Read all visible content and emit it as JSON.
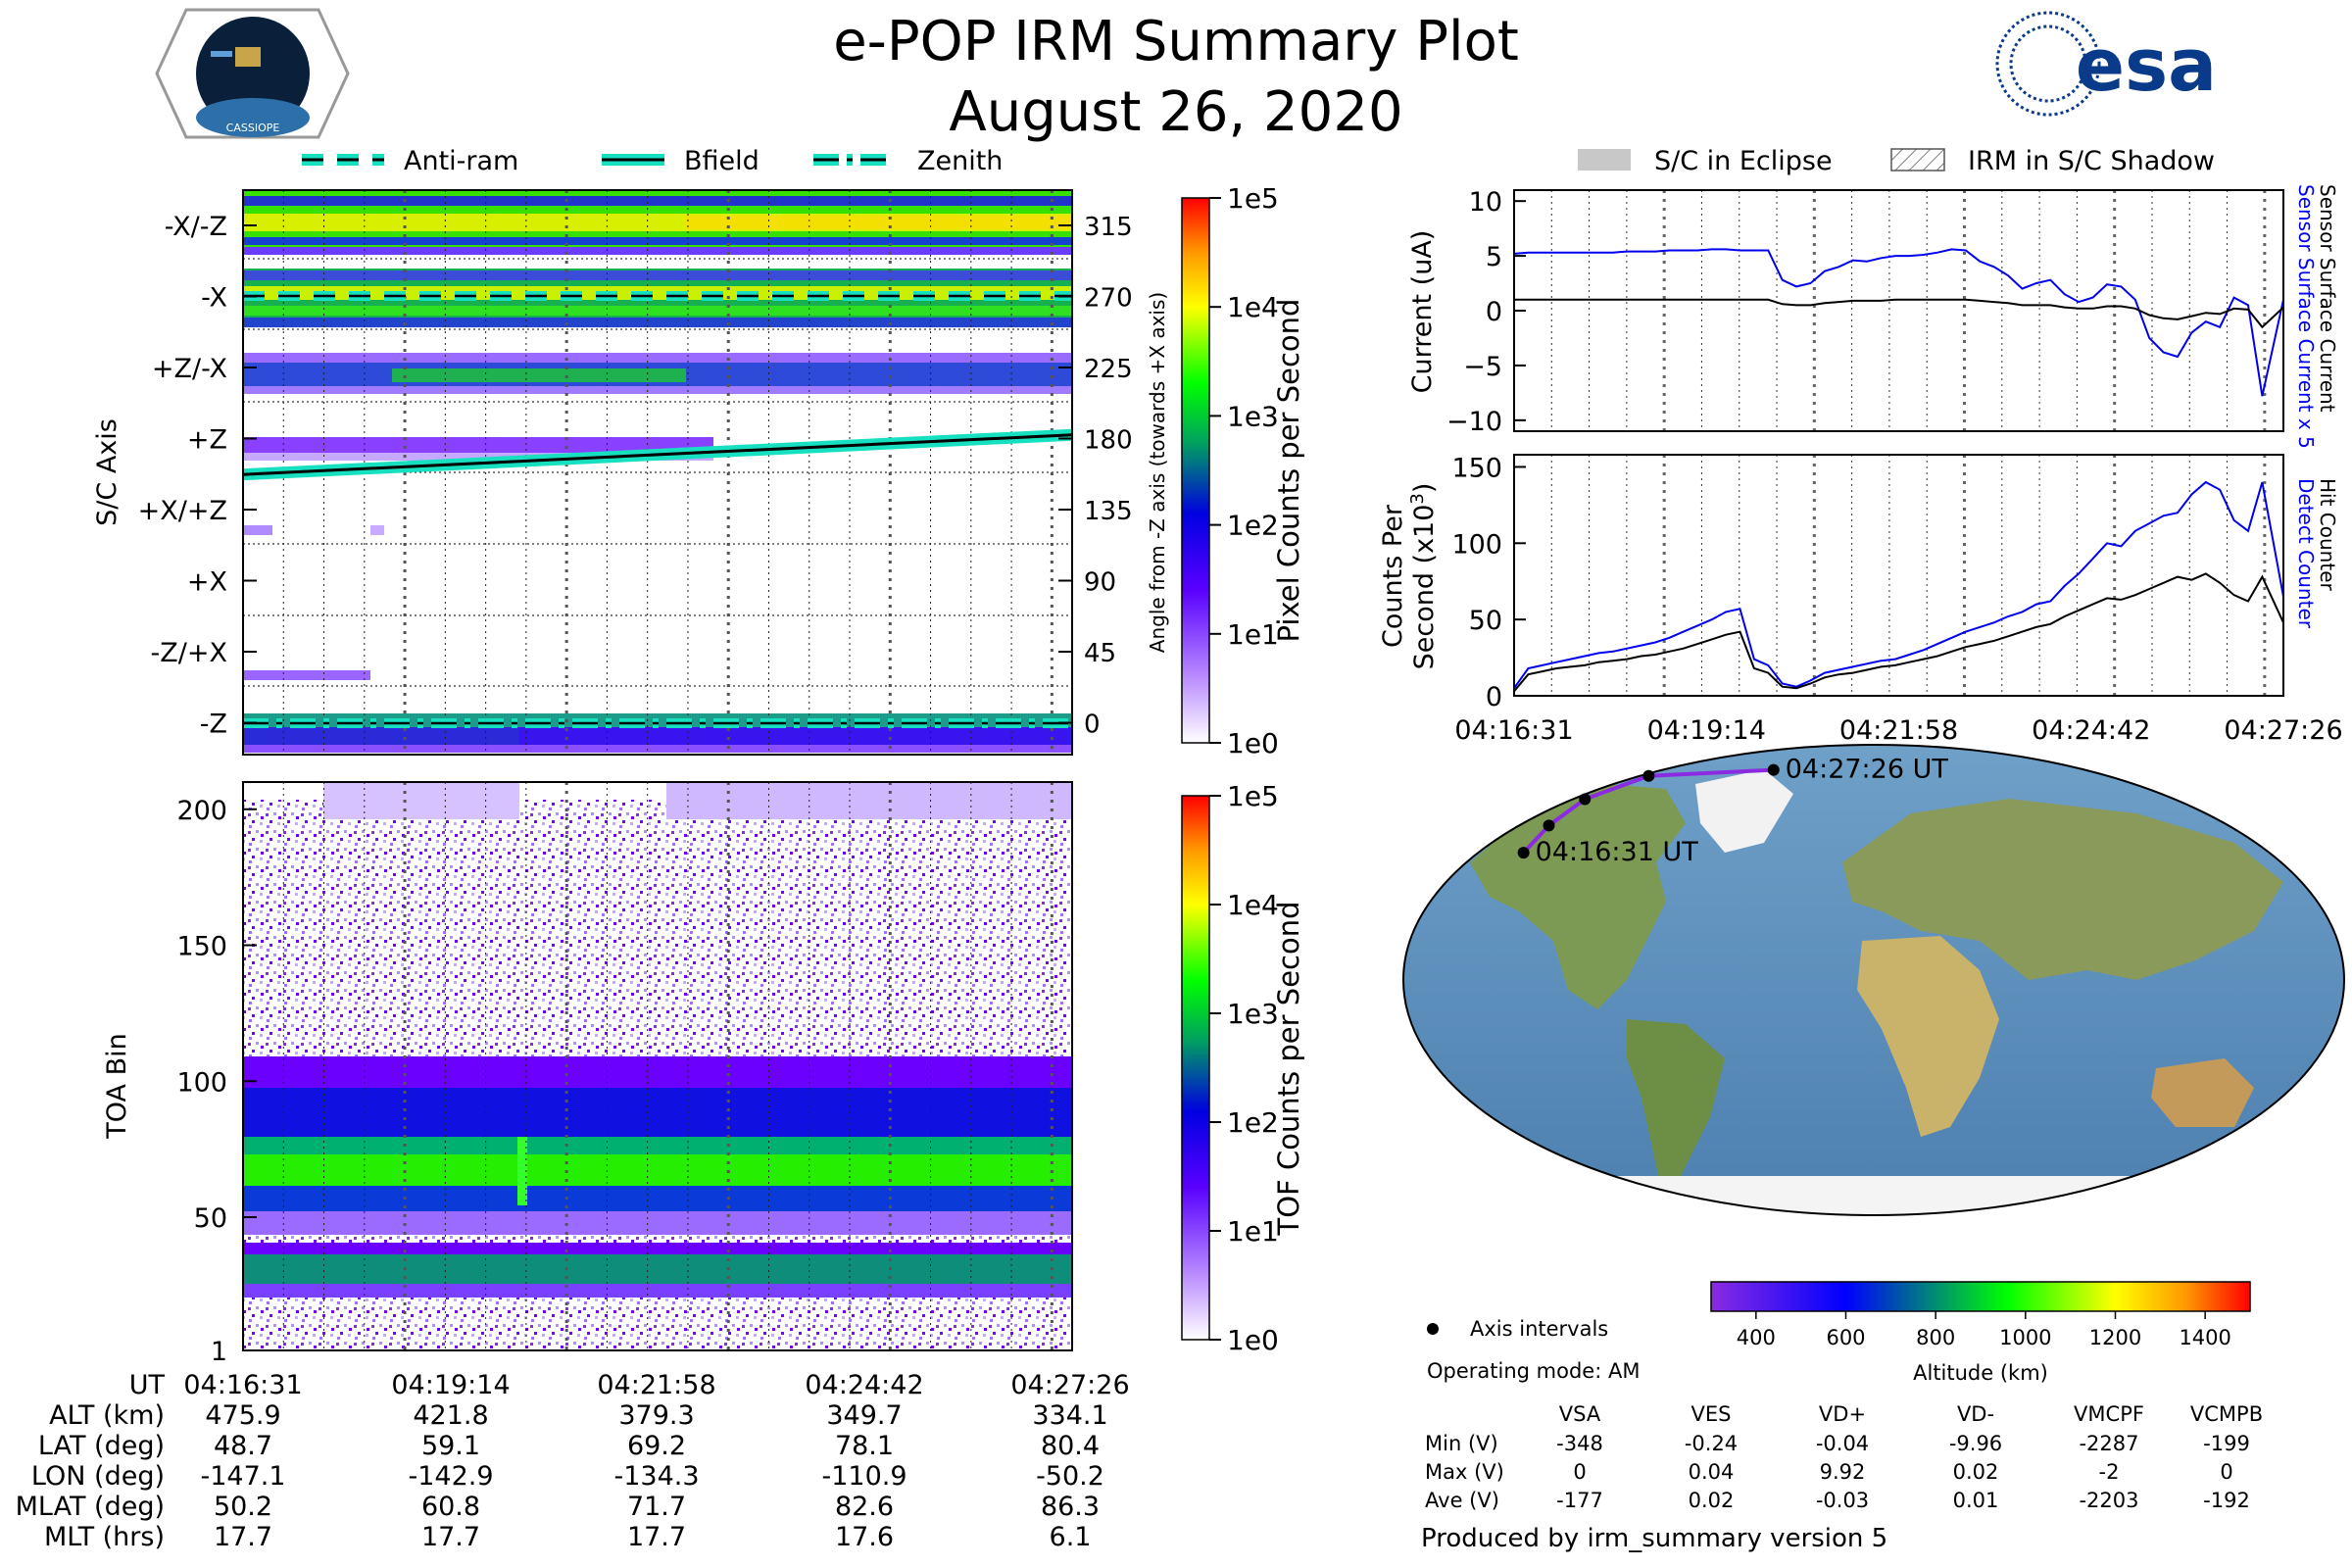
{
  "header": {
    "title": "e-POP IRM Summary Plot",
    "date": "August 26, 2020"
  },
  "logos": {
    "cassiope_text": "CASSIOPE",
    "esa_text": "esa"
  },
  "legend_top_left": [
    {
      "label": "Anti-ram",
      "style": "dashed"
    },
    {
      "label": "Bfield",
      "style": "solid"
    },
    {
      "label": "Zenith",
      "style": "dashdot"
    }
  ],
  "legend_top_right": [
    {
      "label": "S/C in Eclipse",
      "style": "gray"
    },
    {
      "label": "IRM in S/C Shadow",
      "style": "hatch"
    }
  ],
  "colors": {
    "accent": "#17e0c0",
    "blue_line": "#0000ee",
    "black_line": "#000000"
  },
  "chart_data": [
    {
      "id": "pixel",
      "type": "heatmap",
      "ylabel": "S/C Axis",
      "yticks_left": [
        "-X/-Z",
        "-X",
        "+Z/-X",
        "+Z",
        "+X/+Z",
        "+X",
        "-Z/+X",
        "-Z"
      ],
      "yticks_right": [
        "315",
        "270",
        "225",
        "180",
        "135",
        "90",
        "45",
        "0"
      ],
      "ylabel_right": "Angle from -Z axis (towards +X axis)",
      "colorbar_label": "Pixel Counts per Second",
      "colorbar_ticks": [
        "1e5",
        "1e4",
        "1e3",
        "1e2",
        "1e1",
        "1e0"
      ],
      "bfield_angle": [
        158,
        183
      ]
    },
    {
      "id": "tof",
      "type": "heatmap",
      "ylabel": "TOA Bin",
      "yticks": [
        "200",
        "150",
        "100",
        "50",
        "1"
      ],
      "ylim": [
        1,
        210
      ],
      "colorbar_label": "TOF Counts per Second",
      "colorbar_ticks": [
        "1e5",
        "1e4",
        "1e3",
        "1e2",
        "1e1",
        "1e0"
      ]
    },
    {
      "id": "current",
      "type": "line",
      "ylabel": "Current (uA)",
      "yticks": [
        "10",
        "5",
        "0",
        "−5",
        "−10"
      ],
      "ylim": [
        -11,
        11
      ],
      "right_label_blue": "Sensor Surface Current x 5",
      "right_label_black": "Sensor Surface Current",
      "x": [
        0,
        0.2,
        0.4,
        0.6,
        0.8,
        1.0,
        1.2,
        1.4,
        1.6,
        1.8,
        2.0,
        2.2,
        2.4,
        2.6,
        2.8,
        3.0,
        3.2,
        3.4,
        3.6,
        3.8,
        4.0,
        4.2,
        4.4,
        4.6,
        4.8,
        5.0,
        5.2,
        5.4,
        5.6,
        5.8,
        6.0,
        6.2,
        6.4,
        6.6,
        6.8,
        7.0,
        7.2,
        7.4,
        7.6,
        7.8,
        8.0,
        8.2,
        8.4,
        8.6,
        8.8,
        9.0,
        9.2,
        9.4,
        9.6,
        9.8,
        10.0,
        10.2,
        10.4,
        10.6,
        10.9
      ],
      "series": [
        {
          "name": "Sensor Surface Current x 5",
          "color": "#0000ee",
          "values": [
            5.2,
            5.3,
            5.3,
            5.3,
            5.3,
            5.3,
            5.3,
            5.3,
            5.4,
            5.4,
            5.4,
            5.5,
            5.5,
            5.5,
            5.6,
            5.6,
            5.5,
            5.5,
            5.5,
            2.8,
            2.2,
            2.5,
            3.6,
            4.0,
            4.6,
            4.5,
            4.8,
            5.0,
            5.0,
            5.1,
            5.3,
            5.6,
            5.5,
            4.5,
            4.0,
            3.2,
            2.0,
            2.5,
            2.8,
            1.5,
            0.8,
            1.2,
            2.4,
            2.2,
            1.0,
            -2.5,
            -3.8,
            -4.2,
            -2.0,
            -1.0,
            -1.5,
            1.2,
            0.5,
            -7.8,
            1.0
          ]
        },
        {
          "name": "Sensor Surface Current",
          "color": "#000000",
          "values": [
            1.0,
            1.0,
            1.0,
            1.0,
            1.0,
            1.0,
            1.0,
            1.0,
            1.0,
            1.0,
            1.0,
            1.0,
            1.0,
            1.0,
            1.0,
            1.0,
            1.0,
            1.0,
            1.0,
            0.6,
            0.5,
            0.5,
            0.7,
            0.8,
            0.9,
            0.9,
            0.9,
            1.0,
            1.0,
            1.0,
            1.0,
            1.0,
            1.0,
            0.9,
            0.8,
            0.7,
            0.5,
            0.5,
            0.5,
            0.3,
            0.2,
            0.2,
            0.4,
            0.4,
            0.2,
            -0.4,
            -0.7,
            -0.8,
            -0.5,
            -0.2,
            -0.3,
            0.2,
            0.1,
            -1.5,
            0.3
          ]
        }
      ]
    },
    {
      "id": "counts",
      "type": "line",
      "ylabel": "Counts Per Second (x10³)",
      "ylabel_line1": "Counts Per",
      "ylabel_line2": "Second (x10",
      "ylabel_sup": "3",
      "ylabel_close": ")",
      "yticks": [
        "150",
        "100",
        "50",
        "0"
      ],
      "ylim": [
        0,
        158
      ],
      "xticks": [
        "04:16:31",
        "04:19:14",
        "04:21:58",
        "04:24:42",
        "04:27:26"
      ],
      "right_label_blue": "Detect Counter",
      "right_label_black": "Hit Counter",
      "x": [
        0,
        0.2,
        0.4,
        0.6,
        0.8,
        1.0,
        1.2,
        1.4,
        1.6,
        1.8,
        2.0,
        2.2,
        2.4,
        2.6,
        2.8,
        3.0,
        3.2,
        3.4,
        3.6,
        3.8,
        4.0,
        4.2,
        4.4,
        4.6,
        4.8,
        5.0,
        5.2,
        5.4,
        5.6,
        5.8,
        6.0,
        6.2,
        6.4,
        6.6,
        6.8,
        7.0,
        7.2,
        7.4,
        7.6,
        7.8,
        8.0,
        8.2,
        8.4,
        8.6,
        8.8,
        9.0,
        9.2,
        9.4,
        9.6,
        9.8,
        10.0,
        10.2,
        10.4,
        10.6,
        10.9
      ],
      "series": [
        {
          "name": "Detect Counter",
          "color": "#0000ee",
          "values": [
            5,
            18,
            20,
            22,
            24,
            26,
            28,
            29,
            31,
            33,
            35,
            38,
            42,
            46,
            50,
            55,
            57,
            24,
            20,
            8,
            6,
            10,
            15,
            17,
            19,
            21,
            23,
            24,
            27,
            30,
            34,
            38,
            42,
            45,
            48,
            52,
            55,
            60,
            62,
            72,
            80,
            90,
            100,
            98,
            108,
            113,
            118,
            120,
            132,
            140,
            135,
            115,
            108,
            140,
            65
          ]
        },
        {
          "name": "Hit Counter",
          "color": "#000000",
          "values": [
            3,
            14,
            16,
            18,
            19,
            20,
            22,
            23,
            24,
            26,
            27,
            29,
            31,
            34,
            37,
            40,
            42,
            18,
            15,
            6,
            5,
            8,
            12,
            14,
            15,
            17,
            19,
            20,
            22,
            24,
            26,
            29,
            32,
            34,
            36,
            39,
            42,
            45,
            47,
            52,
            56,
            60,
            64,
            63,
            66,
            70,
            74,
            78,
            76,
            80,
            74,
            66,
            62,
            78,
            48
          ]
        }
      ]
    },
    {
      "id": "map",
      "type": "scatter",
      "label_start": "04:16:31 UT",
      "label_end": "04:27:26 UT",
      "points_lon": [
        -147.1,
        -142.9,
        -134.3,
        -110.9,
        -50.2
      ],
      "points_lat": [
        48.7,
        59.1,
        69.2,
        78.1,
        80.4
      ],
      "colorbar_label": "Altitude (km)",
      "colorbar_ticks": [
        "400",
        "600",
        "800",
        "1000",
        "1200",
        "1400"
      ],
      "colorbar_range": [
        300,
        1500
      ]
    }
  ],
  "time_axis": {
    "ticks": [
      "04:16:31",
      "04:19:14",
      "04:21:58",
      "04:24:42",
      "04:27:26"
    ],
    "rows": [
      {
        "label": "UT",
        "values": [
          "04:16:31",
          "04:19:14",
          "04:21:58",
          "04:24:42",
          "04:27:26"
        ]
      },
      {
        "label": "ALT (km)",
        "values": [
          "475.9",
          "421.8",
          "379.3",
          "349.7",
          "334.1"
        ]
      },
      {
        "label": "LAT (deg)",
        "values": [
          "48.7",
          "59.1",
          "69.2",
          "78.1",
          "80.4"
        ]
      },
      {
        "label": "LON (deg)",
        "values": [
          "-147.1",
          "-142.9",
          "-134.3",
          "-110.9",
          "-50.2"
        ]
      },
      {
        "label": "MLAT (deg)",
        "values": [
          "50.2",
          "60.8",
          "71.7",
          "82.6",
          "86.3"
        ]
      },
      {
        "label": "MLT (hrs)",
        "values": [
          "17.7",
          "17.7",
          "17.7",
          "17.6",
          "6.1"
        ]
      }
    ]
  },
  "info": {
    "axis_intervals": "Axis intervals",
    "operating_mode": "Operating mode: AM",
    "produced_by": "Produced by irm_summary version 5",
    "voltage_table": {
      "columns": [
        "VSA",
        "VES",
        "VD+",
        "VD-",
        "VMCPF",
        "VCMPB"
      ],
      "rows": [
        {
          "label": "Min (V)",
          "values": [
            "-348",
            "-0.24",
            "-0.04",
            "-9.96",
            "-2287",
            "-199"
          ]
        },
        {
          "label": "Max (V)",
          "values": [
            "0",
            "0.04",
            "9.92",
            "0.02",
            "-2",
            "0"
          ]
        },
        {
          "label": "Ave (V)",
          "values": [
            "-177",
            "0.02",
            "-0.03",
            "0.01",
            "-2203",
            "-192"
          ]
        }
      ]
    }
  }
}
